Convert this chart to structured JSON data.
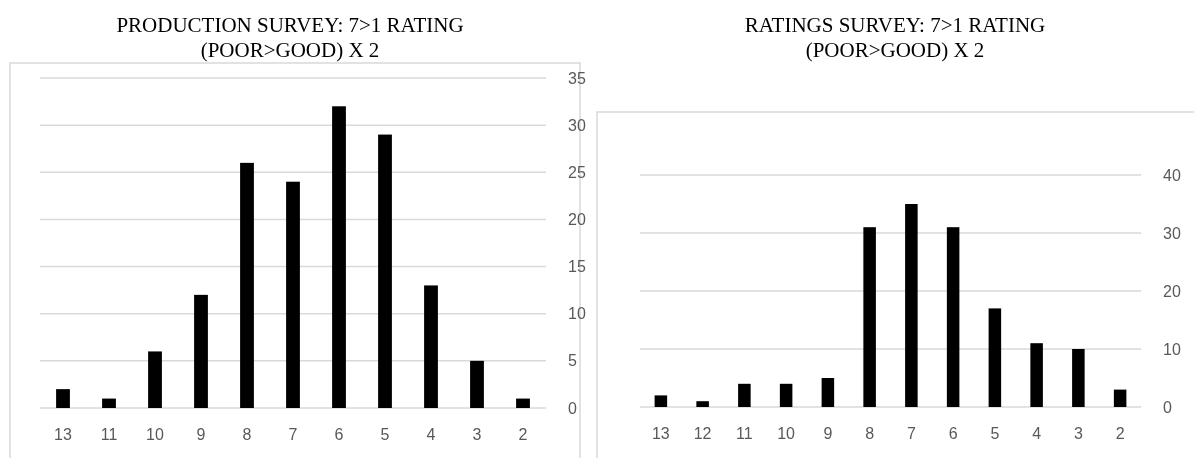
{
  "chart_data": [
    {
      "type": "bar",
      "title": "PRODUCTION SURVEY: 7>1 RATING (POOR>GOOD) X 2",
      "categories": [
        "13",
        "11",
        "10",
        "9",
        "8",
        "7",
        "6",
        "5",
        "4",
        "3",
        "2"
      ],
      "values": [
        2,
        1,
        6,
        12,
        26,
        24,
        32,
        29,
        13,
        5,
        1
      ],
      "color": "#000000",
      "ylim": [
        0,
        35
      ],
      "yticks": [
        0,
        5,
        10,
        15,
        20,
        25,
        30,
        35
      ],
      "grid": "y"
    },
    {
      "type": "bar",
      "title": "RATINGS SURVEY: 7>1 RATING (POOR>GOOD) X 2",
      "categories": [
        "13",
        "12",
        "11",
        "10",
        "9",
        "8",
        "7",
        "6",
        "5",
        "4",
        "3",
        "2"
      ],
      "values": [
        2,
        1,
        4,
        4,
        5,
        31,
        35,
        31,
        17,
        11,
        10,
        3
      ],
      "color": "#000000",
      "ylim": [
        0,
        40
      ],
      "yticks": [
        0,
        10,
        20,
        30,
        40
      ],
      "grid": "y"
    }
  ]
}
